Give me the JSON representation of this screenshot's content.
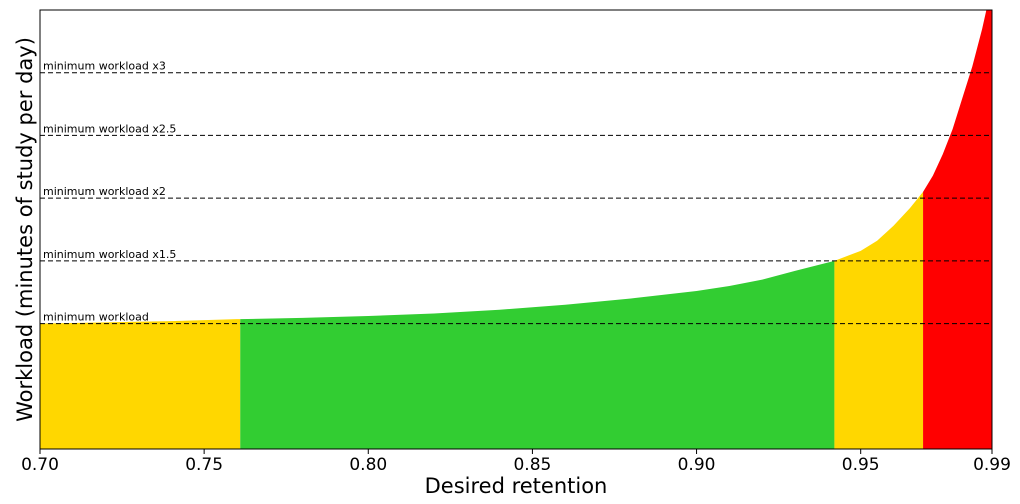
{
  "chart_data": {
    "type": "area",
    "xlabel": "Desired retention",
    "ylabel": "Workload (minutes of study per day)",
    "xlim": [
      0.7,
      0.99
    ],
    "ylim": [
      0,
      3.5
    ],
    "x_ticks": [
      {
        "value": 0.7,
        "label": "0.70"
      },
      {
        "value": 0.75,
        "label": "0.75"
      },
      {
        "value": 0.8,
        "label": "0.80"
      },
      {
        "value": 0.85,
        "label": "0.85"
      },
      {
        "value": 0.9,
        "label": "0.90"
      },
      {
        "value": 0.95,
        "label": "0.95"
      },
      {
        "value": 0.99,
        "label": "0.99"
      }
    ],
    "reference_lines": [
      {
        "label": "minimum workload",
        "multiplier": 1.0
      },
      {
        "label": "minimum workload x1.5",
        "multiplier": 1.5
      },
      {
        "label": "minimum workload x2",
        "multiplier": 2.0
      },
      {
        "label": "minimum workload x2.5",
        "multiplier": 2.5
      },
      {
        "label": "minimum workload x3",
        "multiplier": 3.0
      }
    ],
    "curve": {
      "x": [
        0.7,
        0.72,
        0.74,
        0.76,
        0.78,
        0.8,
        0.82,
        0.84,
        0.86,
        0.88,
        0.9,
        0.91,
        0.92,
        0.93,
        0.942,
        0.95,
        0.955,
        0.96,
        0.965,
        0.969,
        0.972,
        0.975,
        0.978,
        0.981,
        0.984,
        0.987,
        0.99
      ],
      "y": [
        1.0,
        1.01,
        1.02,
        1.035,
        1.045,
        1.06,
        1.08,
        1.11,
        1.15,
        1.2,
        1.26,
        1.3,
        1.35,
        1.42,
        1.5,
        1.58,
        1.66,
        1.78,
        1.92,
        2.05,
        2.18,
        2.35,
        2.55,
        2.8,
        3.05,
        3.35,
        3.7
      ]
    },
    "zones": [
      {
        "from": 0.7,
        "to": 0.761,
        "color": "#FFD700"
      },
      {
        "from": 0.761,
        "to": 0.942,
        "color": "#32CD32"
      },
      {
        "from": 0.942,
        "to": 0.969,
        "color": "#FFD700"
      },
      {
        "from": 0.969,
        "to": 0.99,
        "color": "#FF0000"
      }
    ],
    "grid": false,
    "legend": "none"
  }
}
